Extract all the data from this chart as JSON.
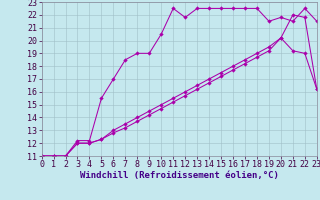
{
  "xlabel": "Windchill (Refroidissement éolien,°C)",
  "xlim": [
    0,
    23
  ],
  "ylim": [
    11,
    23
  ],
  "xticks": [
    0,
    1,
    2,
    3,
    4,
    5,
    6,
    7,
    8,
    9,
    10,
    11,
    12,
    13,
    14,
    15,
    16,
    17,
    18,
    19,
    20,
    21,
    22,
    23
  ],
  "yticks": [
    11,
    12,
    13,
    14,
    15,
    16,
    17,
    18,
    19,
    20,
    21,
    22,
    23
  ],
  "bg_color": "#c5e8ee",
  "line_color": "#aa00aa",
  "grid_color": "#a0bfc8",
  "line1_x": [
    0,
    1,
    2,
    3,
    4,
    5,
    6,
    7,
    8,
    9,
    10,
    11,
    12,
    13,
    14,
    15,
    16,
    17,
    18,
    19,
    20,
    21,
    22,
    23
  ],
  "line1_y": [
    11,
    11,
    11,
    12.2,
    12.2,
    15.5,
    17,
    18.5,
    19,
    19,
    20.5,
    22.5,
    21.8,
    22.5,
    22.5,
    22.5,
    22.5,
    22.5,
    22.5,
    21.5,
    21.8,
    21.5,
    22.5,
    21.5
  ],
  "line2_x": [
    0,
    1,
    2,
    3,
    4,
    5,
    6,
    7,
    8,
    9,
    10,
    11,
    12,
    13,
    14,
    15,
    16,
    17,
    18,
    19,
    20,
    21,
    22,
    23
  ],
  "line2_y": [
    11,
    11,
    11,
    12,
    12,
    12.3,
    12.8,
    13.2,
    13.7,
    14.2,
    14.7,
    15.2,
    15.7,
    16.2,
    16.7,
    17.2,
    17.7,
    18.2,
    18.7,
    19.2,
    20.2,
    19.2,
    19,
    16.2
  ],
  "line3_x": [
    0,
    1,
    2,
    3,
    4,
    5,
    6,
    7,
    8,
    9,
    10,
    11,
    12,
    13,
    14,
    15,
    16,
    17,
    18,
    19,
    20,
    21,
    22,
    23
  ],
  "line3_y": [
    11,
    11,
    11,
    12,
    12,
    12.3,
    13,
    13.5,
    14,
    14.5,
    15,
    15.5,
    16,
    16.5,
    17,
    17.5,
    18,
    18.5,
    19,
    19.5,
    20.2,
    22,
    21.8,
    16.2
  ],
  "tick_fontsize": 6,
  "xlabel_fontsize": 6.5
}
